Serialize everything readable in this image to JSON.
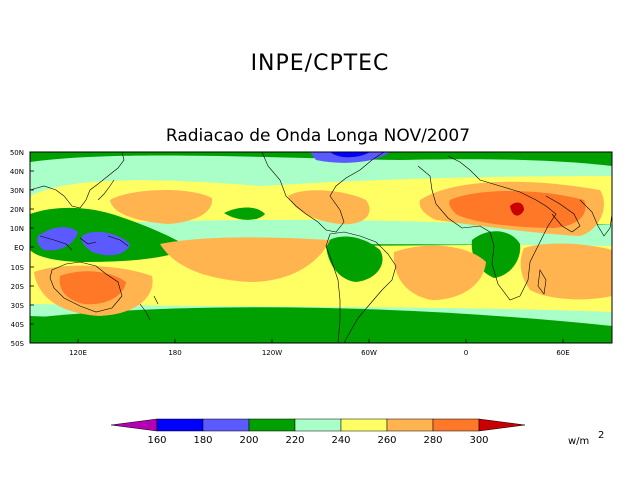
{
  "header": {
    "org": "INPE/CPTEC"
  },
  "map": {
    "title": "Radiacao de Onda Longa NOV/2007",
    "lat_labels": [
      "50N",
      "40N",
      "30N",
      "20N",
      "10N",
      "EQ",
      "10S",
      "20S",
      "30S",
      "40S",
      "50S"
    ],
    "lon_labels": [
      "120E",
      "180",
      "120W",
      "60W",
      "0",
      "60E"
    ]
  },
  "legend": {
    "thresholds": [
      "160",
      "180",
      "200",
      "220",
      "240",
      "260",
      "280",
      "300"
    ],
    "unit": "w/m",
    "unit_power": "2",
    "colors": {
      "lt160": "#b400b4",
      "c160_180": "#0000ff",
      "c180_200": "#5a5aff",
      "c200_220": "#00a000",
      "c220_240": "#aaffc8",
      "c240_260": "#ffff64",
      "c260_280": "#ffb450",
      "c280_300": "#ff7828",
      "gt300": "#c80000"
    }
  }
}
